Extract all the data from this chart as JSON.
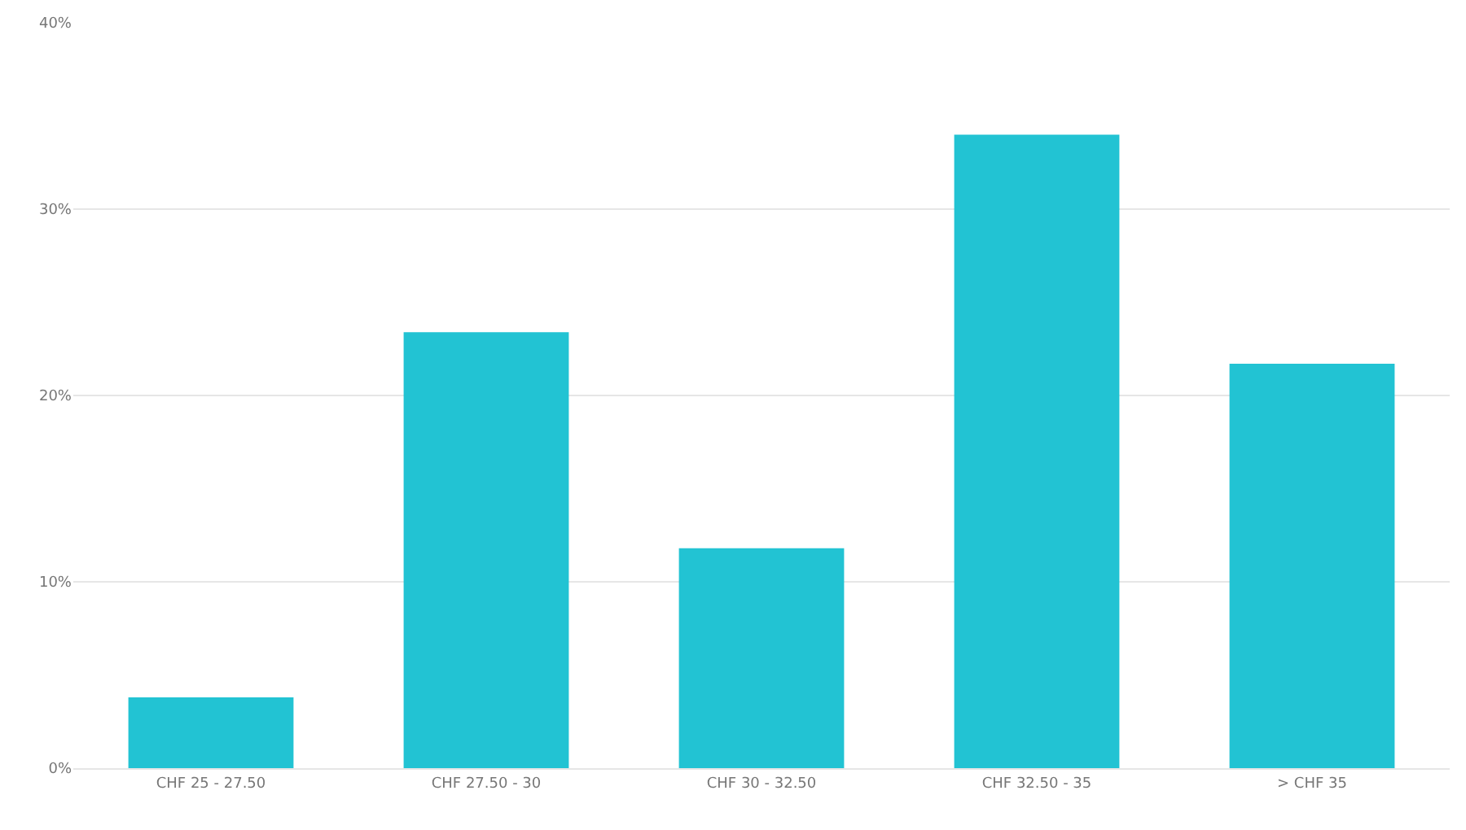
{
  "chart_data": {
    "type": "bar",
    "categories": [
      "CHF 25 - 27.50",
      "CHF 27.50 - 30",
      "CHF 30 - 32.50",
      "CHF 32.50 - 35",
      "> CHF 35"
    ],
    "values": [
      3.8,
      23.4,
      11.8,
      34.0,
      21.7
    ],
    "color": "#22c3d3",
    "ylim": [
      0,
      40
    ],
    "yticks": [
      {
        "value": 0,
        "label": "0%"
      },
      {
        "value": 10,
        "label": "10%"
      },
      {
        "value": 20,
        "label": "20%"
      },
      {
        "value": 30,
        "label": "30%"
      },
      {
        "value": 40,
        "label": "40%"
      }
    ],
    "grid": "y"
  }
}
